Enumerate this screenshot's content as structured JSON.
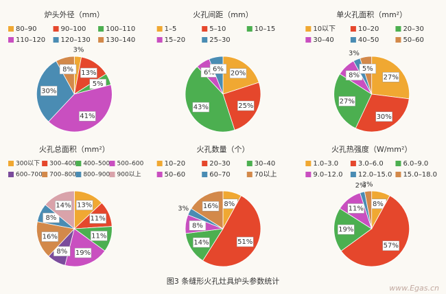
{
  "chart_data": [
    {
      "type": "pie",
      "title": "炉头外径（mm）",
      "categories": [
        "80–90",
        "90–100",
        "100–110",
        "110–120",
        "120–130",
        "130–140"
      ],
      "values": [
        3,
        13,
        5,
        41,
        30,
        8
      ],
      "value_labels": [
        "3%",
        "13%",
        "5%",
        "41%",
        "30%",
        "8%"
      ],
      "colors": [
        "#f0a832",
        "#e5472c",
        "#4caf50",
        "#c94fc0",
        "#4a8cb3",
        "#d3894a"
      ]
    },
    {
      "type": "pie",
      "title": "火孔间距（mm）",
      "categories": [
        "1–5",
        "5–10",
        "10–15",
        "15–20",
        "25–30"
      ],
      "values": [
        20,
        25,
        43,
        6,
        6
      ],
      "value_labels": [
        "20%",
        "25%",
        "43%",
        "6%",
        "6%"
      ],
      "colors": [
        "#f0a832",
        "#e5472c",
        "#4caf50",
        "#c94fc0",
        "#4a8cb3"
      ]
    },
    {
      "type": "pie",
      "title": "单火孔面积（mm²）",
      "categories": [
        "10以下",
        "10–20",
        "20–30",
        "30–40",
        "40–50",
        "50–60"
      ],
      "values": [
        27,
        30,
        27,
        8,
        3,
        5
      ],
      "value_labels": [
        "27%",
        "30%",
        "27%",
        "8%",
        "3%",
        "5%"
      ],
      "colors": [
        "#f0a832",
        "#e5472c",
        "#4caf50",
        "#c94fc0",
        "#4a8cb3",
        "#d3894a"
      ]
    },
    {
      "type": "pie",
      "title": "火孔总面积（mm²）",
      "categories": [
        "300以下",
        "300–400",
        "400–500",
        "500–600",
        "600–700",
        "700–800",
        "800–900",
        "900以上"
      ],
      "values": [
        13,
        11,
        11,
        19,
        8,
        16,
        8,
        14
      ],
      "value_labels": [
        "13%",
        "11%",
        "11%",
        "19%",
        "8%",
        "16%",
        "8%",
        "14%"
      ],
      "colors": [
        "#f0a832",
        "#e5472c",
        "#4caf50",
        "#c94fc0",
        "#7b4c9c",
        "#d3894a",
        "#4a8cb3",
        "#d9a3aa"
      ]
    },
    {
      "type": "pie",
      "title": "火孔数量（个）",
      "categories": [
        "10–20",
        "20–30",
        "30–40",
        "50–60",
        "60–70",
        "70以上"
      ],
      "values": [
        8,
        51,
        14,
        8,
        3,
        16
      ],
      "value_labels": [
        "8%",
        "51%",
        "14%",
        "8%",
        "3%",
        "16%"
      ],
      "colors": [
        "#f0a832",
        "#e5472c",
        "#4caf50",
        "#c94fc0",
        "#4a8cb3",
        "#d3894a"
      ]
    },
    {
      "type": "pie",
      "title": "火孔热强度（W/mm²）",
      "categories": [
        "1.0–3.0",
        "3.0–6.0",
        "6.0–9.0",
        "9.0–12.0",
        "12.0–15.0",
        "15.0–18.0"
      ],
      "values": [
        8,
        57,
        19,
        11,
        2,
        3
      ],
      "value_labels": [
        "8%",
        "57%",
        "19%",
        "11%",
        "2%",
        "3%"
      ],
      "colors": [
        "#f0a832",
        "#e5472c",
        "#4caf50",
        "#c94fc0",
        "#4a8cb3",
        "#d3894a"
      ]
    }
  ],
  "caption": "图3 条缝形火孔灶具炉头参数统计",
  "watermark": "www.Egas.cn"
}
